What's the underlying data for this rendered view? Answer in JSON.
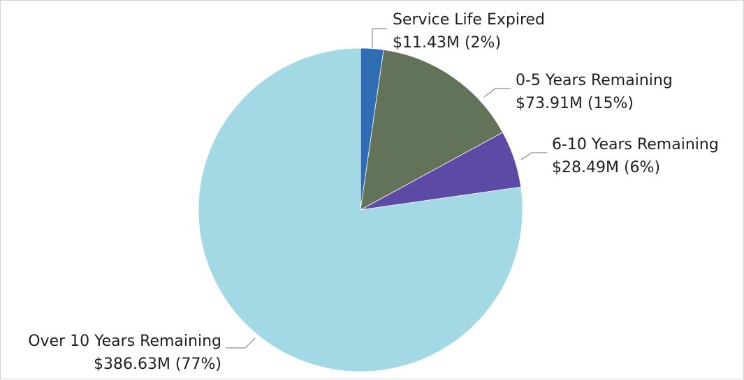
{
  "chart_data": {
    "type": "pie",
    "slices": [
      {
        "name": "Service Life Expired",
        "value": 11.43,
        "value_label": "$11.43M (2%)",
        "color": "#2e6db4"
      },
      {
        "name": "0-5 Years Remaining",
        "value": 73.91,
        "value_label": "$73.91M (15%)",
        "color": "#62735a"
      },
      {
        "name": "6-10 Years Remaining",
        "value": 28.49,
        "value_label": "$28.49M (6%)",
        "color": "#5c4aa6"
      },
      {
        "name": "Over 10 Years Remaining",
        "value": 386.63,
        "value_label": "$386.63M (77%)",
        "color": "#a3d9e4"
      }
    ],
    "units": "$M",
    "legend": "none"
  }
}
